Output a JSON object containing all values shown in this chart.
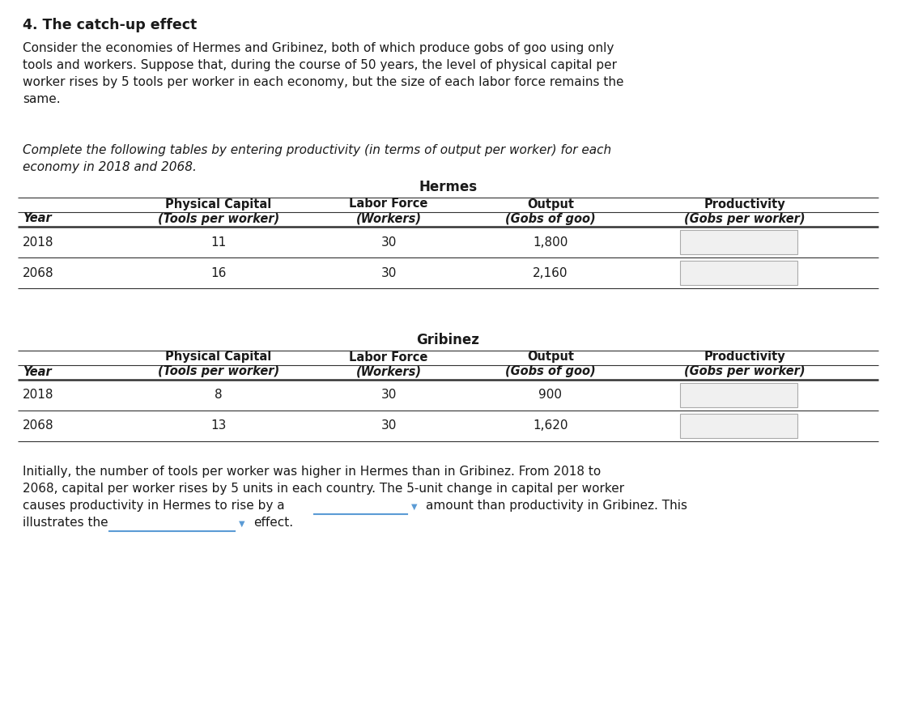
{
  "title": "4. The catch-up effect",
  "paragraph1_lines": [
    "Consider the economies of Hermes and Gribinez, both of which produce gobs of goo using only",
    "tools and workers. Suppose that, during the course of 50 years, the level of physical capital per",
    "worker rises by 5 tools per worker in each economy, but the size of each labor force remains the",
    "same."
  ],
  "italic_lines": [
    "Complete the following tables by entering productivity (in terms of output per worker) for each",
    "economy in 2018 and 2068."
  ],
  "hermes_title": "Hermes",
  "gribinez_title": "Gribinez",
  "header1": [
    "",
    "Physical Capital",
    "Labor Force",
    "Output",
    "Productivity"
  ],
  "header2": [
    "Year",
    "(Tools per worker)",
    "(Workers)",
    "(Gobs of goo)",
    "(Gobs per worker)"
  ],
  "hermes_rows": [
    [
      "2018",
      "11",
      "30",
      "1,800"
    ],
    [
      "2068",
      "16",
      "30",
      "2,160"
    ]
  ],
  "gribinez_rows": [
    [
      "2018",
      "8",
      "30",
      "900"
    ],
    [
      "2068",
      "13",
      "30",
      "1,620"
    ]
  ],
  "footer_lines": [
    "Initially, the number of tools per worker was higher in Hermes than in Gribinez. From 2018 to",
    "2068, capital per worker rises by 5 units in each country. The 5-unit change in capital per worker"
  ],
  "footer_line3_pre": "causes productivity in Hermes to rise by a",
  "footer_line3_post": "amount than productivity in Gribinez. This",
  "footer_line4_pre": "illustrates the",
  "footer_line4_post": "effect.",
  "bg_color": "#ffffff",
  "text_color": "#1a1a1a",
  "table_line_color": "#333333",
  "input_box_color": "#f0f0f0",
  "input_box_edge": "#aaaaaa",
  "dropdown_line_color": "#5b9bd5",
  "font_size_title": 12.5,
  "font_size_body": 11.0,
  "font_size_table_header": 10.5,
  "font_size_table_data": 11.0,
  "font_size_italic": 11.0
}
